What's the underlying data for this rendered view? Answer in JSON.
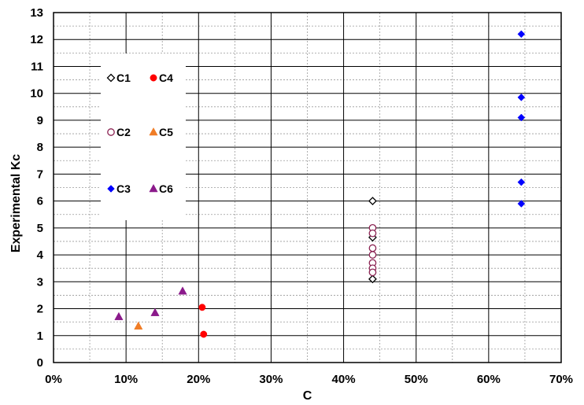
{
  "chart_data": {
    "type": "scatter",
    "xlabel": "C",
    "ylabel": "Experimental Kc",
    "xlim": [
      0,
      0.7
    ],
    "ylim": [
      0,
      13
    ],
    "x_ticks": [
      0,
      0.1,
      0.2,
      0.3,
      0.4,
      0.5,
      0.6,
      0.7
    ],
    "x_tick_labels": [
      "0%",
      "10%",
      "20%",
      "30%",
      "40%",
      "50%",
      "60%",
      "70%"
    ],
    "y_ticks": [
      0,
      1,
      2,
      3,
      4,
      5,
      6,
      7,
      8,
      9,
      10,
      11,
      12,
      13
    ],
    "y_tick_labels": [
      "0",
      "1",
      "2",
      "3",
      "4",
      "5",
      "6",
      "7",
      "8",
      "9",
      "10",
      "11",
      "12",
      "13"
    ],
    "grid": true,
    "legend_position": "upper-left",
    "series": [
      {
        "name": "C1",
        "marker": "diamond-open",
        "color": "#000000",
        "points": [
          [
            0.44,
            6.0
          ],
          [
            0.44,
            4.65
          ],
          [
            0.44,
            3.1
          ]
        ]
      },
      {
        "name": "C2",
        "marker": "circle-open",
        "color": "#8B2252",
        "points": [
          [
            0.44,
            5.0
          ],
          [
            0.44,
            4.8
          ],
          [
            0.44,
            4.25
          ],
          [
            0.44,
            4.0
          ],
          [
            0.44,
            3.7
          ],
          [
            0.44,
            3.5
          ],
          [
            0.44,
            3.35
          ]
        ]
      },
      {
        "name": "C3",
        "marker": "diamond",
        "color": "#0000FF",
        "points": [
          [
            0.645,
            12.2
          ],
          [
            0.645,
            9.85
          ],
          [
            0.645,
            9.1
          ],
          [
            0.645,
            6.7
          ],
          [
            0.645,
            5.9
          ]
        ]
      },
      {
        "name": "C4",
        "marker": "circle",
        "color": "#FF0000",
        "points": [
          [
            0.205,
            2.05
          ],
          [
            0.207,
            1.05
          ]
        ]
      },
      {
        "name": "C5",
        "marker": "triangle",
        "color": "#F07D26",
        "points": [
          [
            0.117,
            1.35
          ]
        ]
      },
      {
        "name": "C6",
        "marker": "triangle",
        "color": "#8B1A8B",
        "points": [
          [
            0.09,
            1.7
          ],
          [
            0.14,
            1.85
          ],
          [
            0.178,
            2.65
          ]
        ]
      }
    ]
  }
}
